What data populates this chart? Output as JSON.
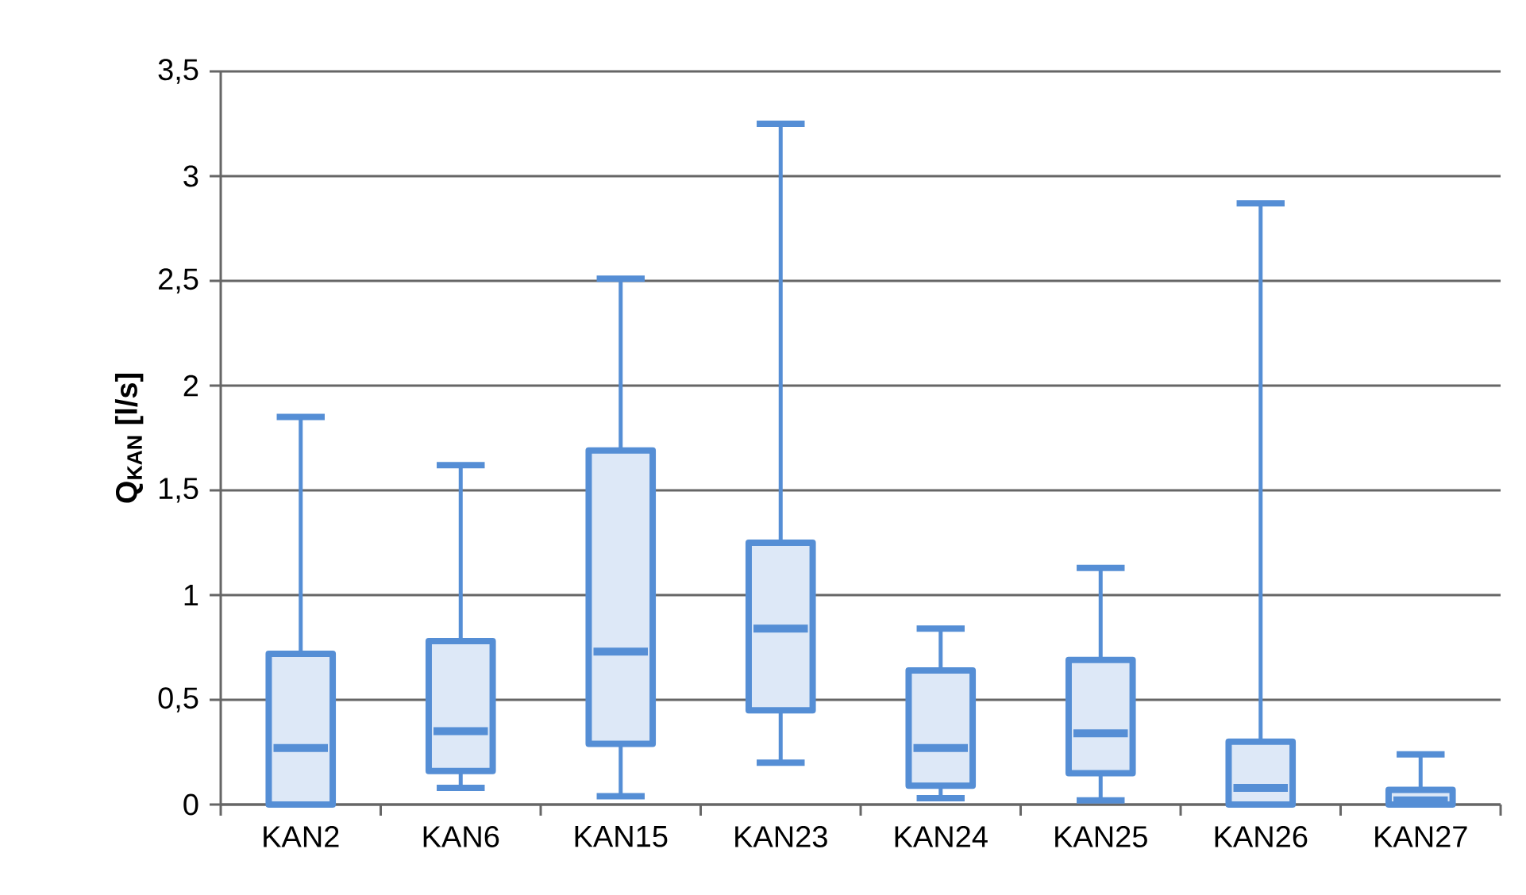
{
  "chart_data": {
    "type": "box",
    "ylabel": "Q$_{KAN}$ [l/s]",
    "categories": [
      "KAN2",
      "KAN6",
      "KAN15",
      "KAN23",
      "KAN24",
      "KAN25",
      "KAN26",
      "KAN27"
    ],
    "color": "#558ed5",
    "grid": "y",
    "ylim": [
      0,
      3.5
    ],
    "yticks": [
      {
        "value": 0,
        "label": "0"
      },
      {
        "value": 0.5,
        "label": "0,5"
      },
      {
        "value": 1,
        "label": "1"
      },
      {
        "value": 1.5,
        "label": "1,5"
      },
      {
        "value": 2,
        "label": "2"
      },
      {
        "value": 2.5,
        "label": "2,5"
      },
      {
        "value": 3,
        "label": "3"
      },
      {
        "value": 3.5,
        "label": "3,5"
      }
    ],
    "boxes": [
      {
        "low": 0,
        "q1": 0,
        "median": 0.27,
        "q3": 0.72,
        "high": 1.85
      },
      {
        "low": 0.08,
        "q1": 0.16,
        "median": 0.35,
        "q3": 0.78,
        "high": 1.62
      },
      {
        "low": 0.04,
        "q1": 0.29,
        "median": 0.73,
        "q3": 1.69,
        "high": 2.51
      },
      {
        "low": 0.2,
        "q1": 0.45,
        "median": 0.84,
        "q3": 1.25,
        "high": 3.25
      },
      {
        "low": 0.03,
        "q1": 0.09,
        "median": 0.27,
        "q3": 0.64,
        "high": 0.84
      },
      {
        "low": 0.02,
        "q1": 0.15,
        "median": 0.34,
        "q3": 0.69,
        "high": 1.13
      },
      {
        "low": 0,
        "q1": 0,
        "median": 0.08,
        "q3": 0.3,
        "high": 2.87
      },
      {
        "low": 0,
        "q1": 0,
        "median": 0.02,
        "q3": 0.07,
        "high": 0.24
      }
    ]
  }
}
